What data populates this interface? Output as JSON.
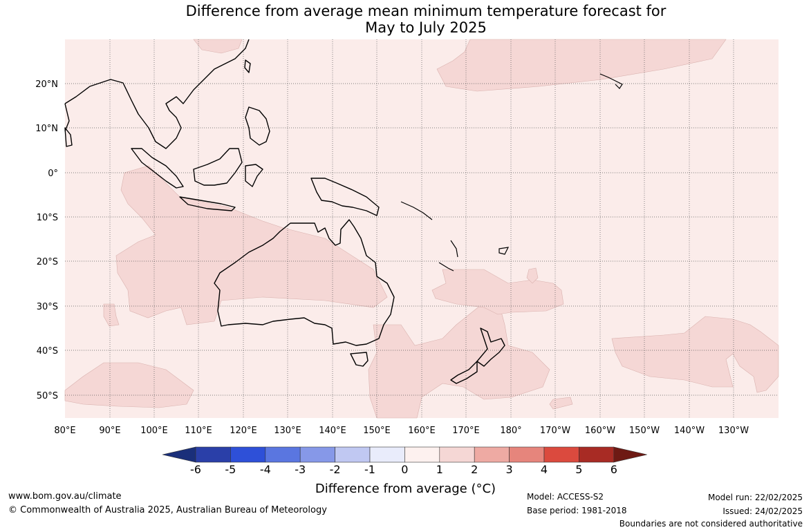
{
  "title": {
    "line1": "Difference from average mean minimum temperature forecast for",
    "line2": "May to July 2025"
  },
  "map": {
    "x_axis_labels": [
      "80°E",
      "90°E",
      "100°E",
      "110°E",
      "120°E",
      "130°E",
      "140°E",
      "150°E",
      "160°E",
      "170°E",
      "180°",
      "170°W",
      "160°W",
      "150°W",
      "140°W",
      "130°W"
    ],
    "y_axis_labels": [
      "20°N",
      "10°N",
      "0°",
      "10°S",
      "20°S",
      "30°S",
      "40°S",
      "50°S"
    ],
    "background_color": "#fbecea",
    "anomaly_region_color": "#f5d7d5",
    "grid": true
  },
  "colorbar": {
    "title": "Difference from average (°C)",
    "ticks": [
      "-6",
      "-5",
      "-4",
      "-3",
      "-2",
      "-1",
      "0",
      "1",
      "2",
      "3",
      "4",
      "5",
      "6"
    ],
    "colors": [
      "#1a2f7a",
      "#2a3fa8",
      "#2e50d8",
      "#5a76e0",
      "#8698e8",
      "#c0c8f2",
      "#e9ecfb",
      "#fdf1ef",
      "#f5d7d5",
      "#eeaaa3",
      "#e6857c",
      "#db4a3e",
      "#a82b24",
      "#6e1a14"
    ]
  },
  "footer": {
    "website": "www.bom.gov.au/climate",
    "copyright": "© Commonwealth of Australia 2025, Australian Bureau of Meteorology",
    "model": "Model: ACCESS-S2",
    "base_period": "Base period: 1981-2018",
    "model_run": "Model run: 22/02/2025",
    "issued": "Issued: 24/02/2025",
    "disclaimer": "Boundaries are not considered authoritative"
  }
}
